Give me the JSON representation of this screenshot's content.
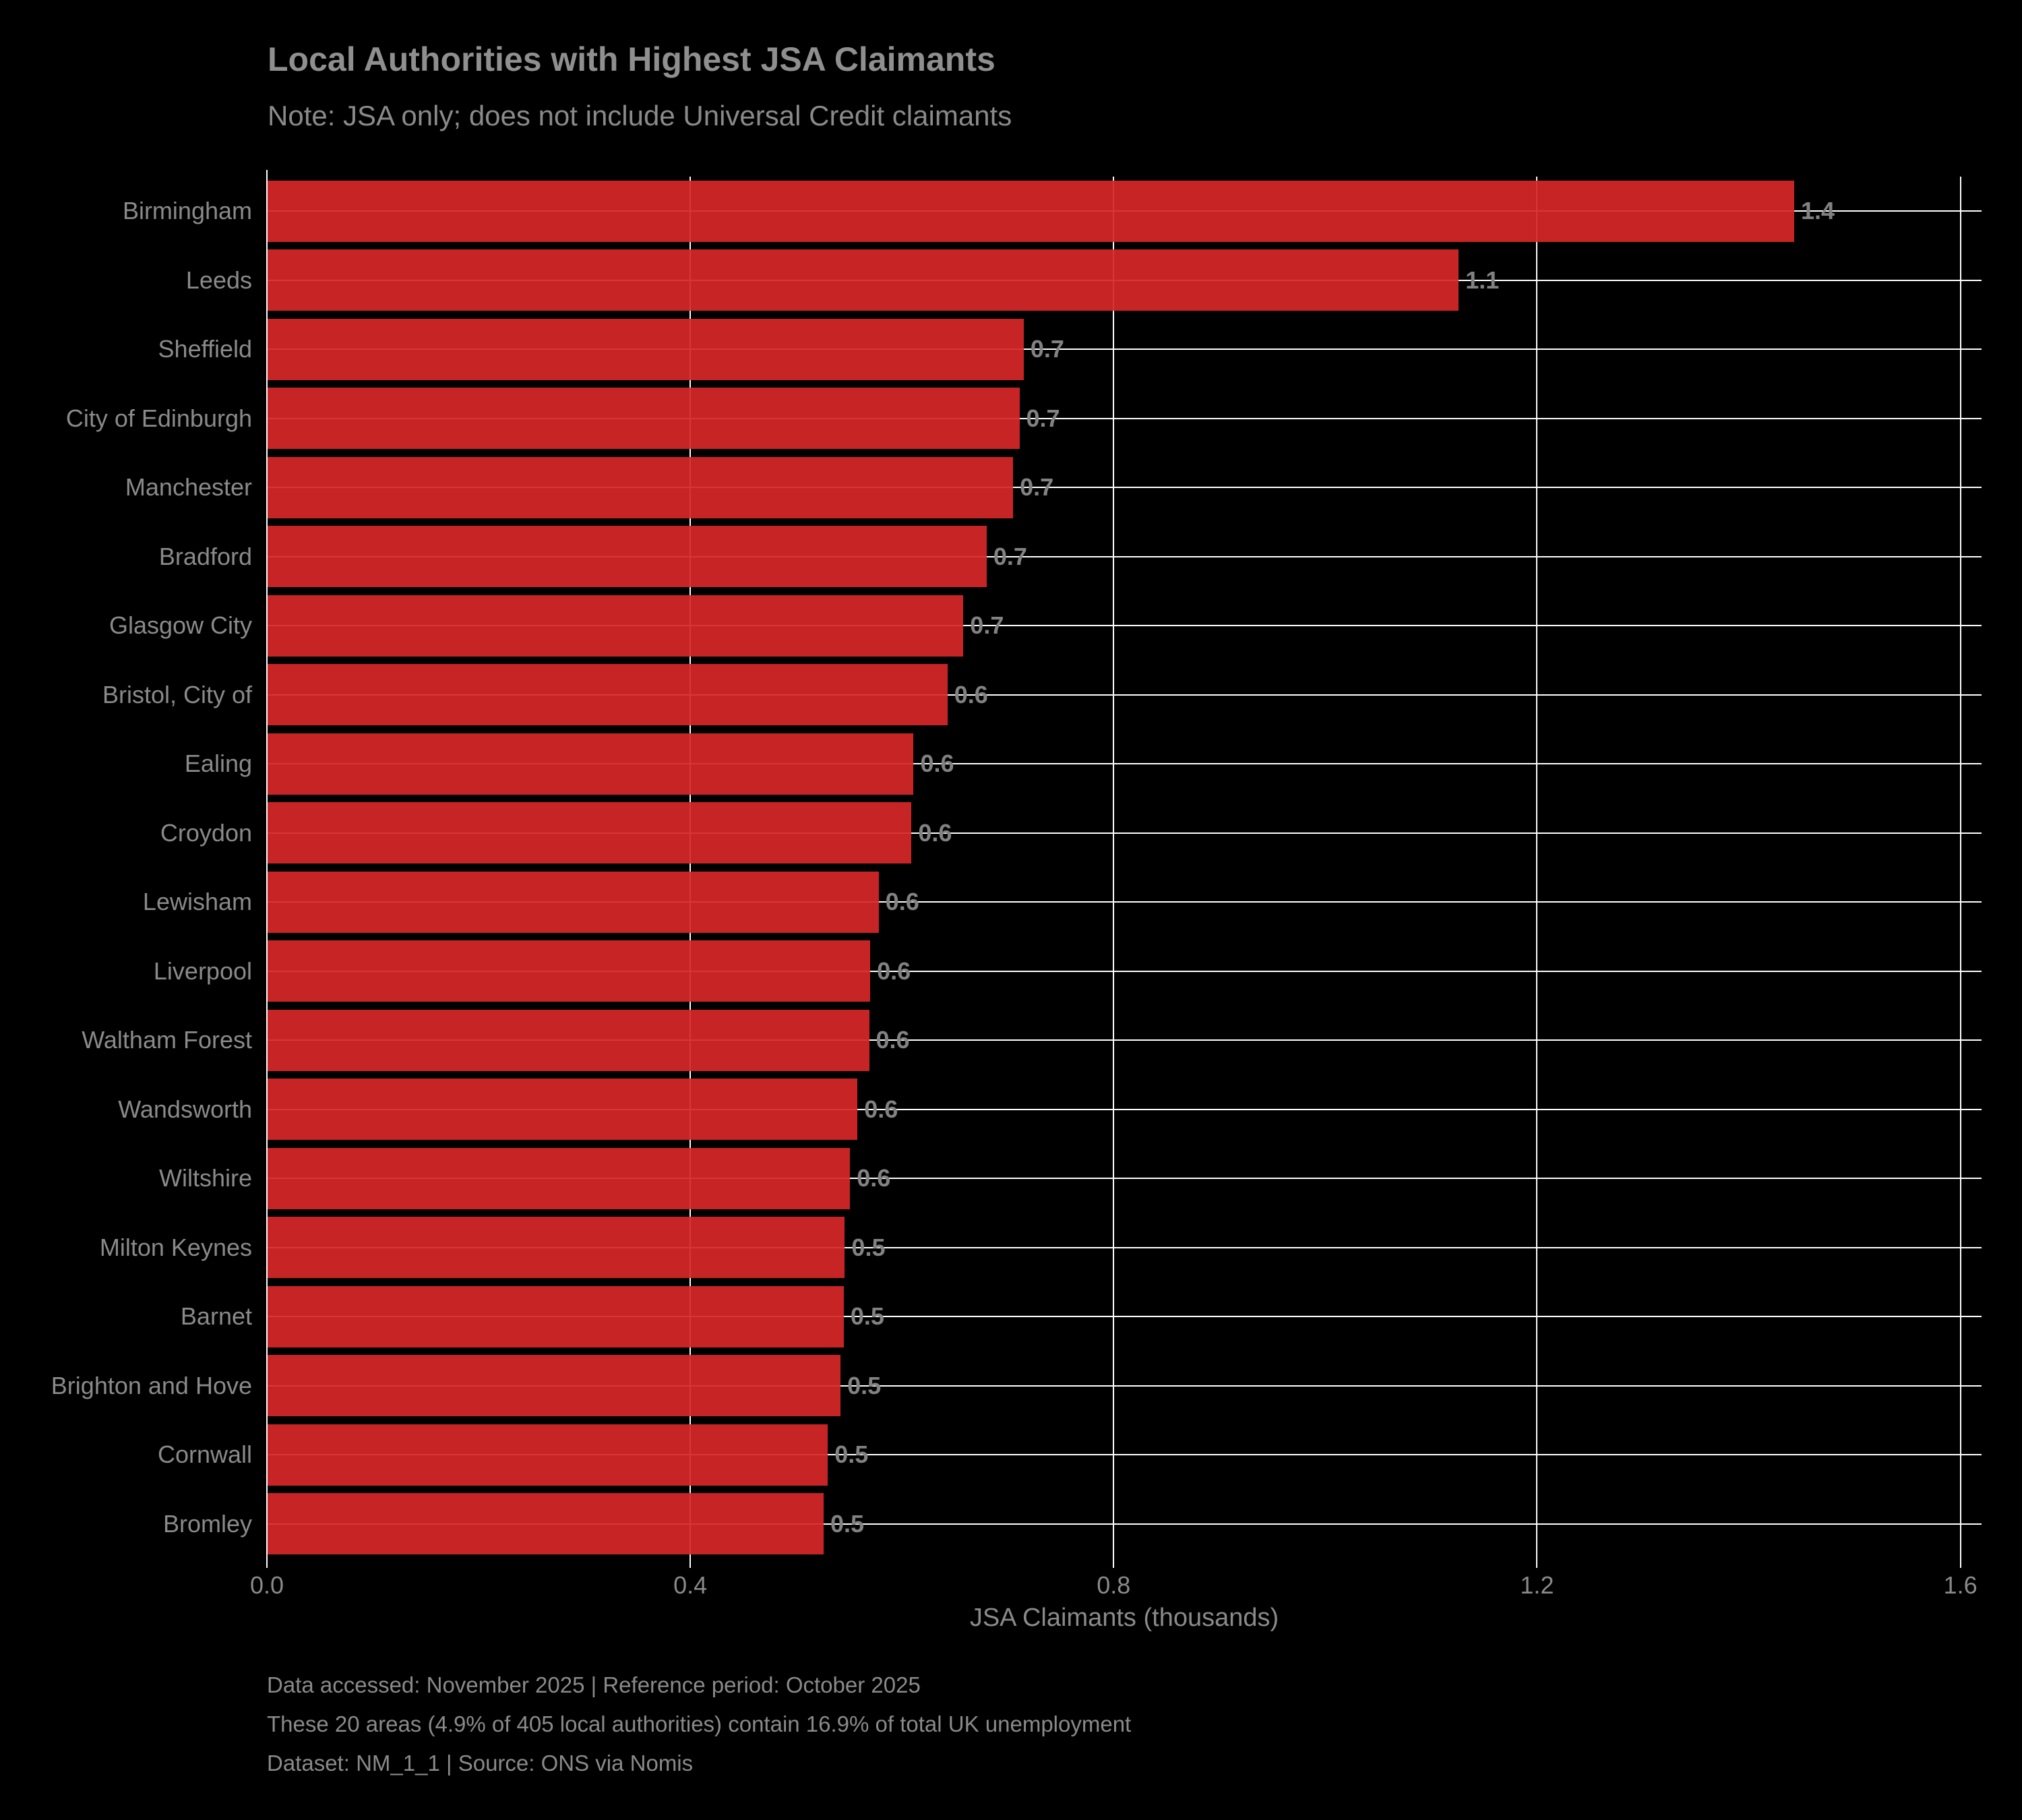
{
  "title": "Local Authorities with Highest JSA Claimants",
  "subtitle": "Note: JSA only; does not include Universal Credit claimants",
  "chart_data": {
    "type": "bar",
    "orientation": "horizontal",
    "title": "Local Authorities with Highest JSA Claimants",
    "subtitle": "Note: JSA only; does not include Universal Credit claimants",
    "categories": [
      "Birmingham",
      "Leeds",
      "Sheffield",
      "City of Edinburgh",
      "Manchester",
      "Bradford",
      "Glasgow City",
      "Bristol, City of",
      "Ealing",
      "Croydon",
      "Lewisham",
      "Liverpool",
      "Waltham Forest",
      "Wandsworth",
      "Wiltshire",
      "Milton Keynes",
      "Barnet",
      "Brighton and Hove",
      "Cornwall",
      "Bromley"
    ],
    "values": [
      1.443,
      1.126,
      0.715,
      0.711,
      0.705,
      0.68,
      0.658,
      0.643,
      0.611,
      0.609,
      0.578,
      0.57,
      0.569,
      0.558,
      0.551,
      0.546,
      0.545,
      0.542,
      0.53,
      0.526
    ],
    "bar_labels": [
      "1.4",
      "1.1",
      "0.7",
      "0.7",
      "0.7",
      "0.7",
      "0.7",
      "0.6",
      "0.6",
      "0.6",
      "0.6",
      "0.6",
      "0.6",
      "0.6",
      "0.6",
      "0.5",
      "0.5",
      "0.5",
      "0.5",
      "0.5"
    ],
    "xlabel": "JSA Claimants (thousands)",
    "xticks": [
      0.0,
      0.4,
      0.8,
      1.2,
      1.6
    ],
    "xtick_labels": [
      "0.0",
      "0.4",
      "0.8",
      "1.2",
      "1.6"
    ],
    "xlim": [
      0,
      1.62
    ],
    "grid": true,
    "legend": "none",
    "bar_color": "#d62728",
    "grid_color": "#ffffff",
    "background_color": "#000000",
    "text_color": "#8a8a8a"
  },
  "footer": {
    "line1": "Data accessed: November 2025 | Reference period: October 2025",
    "line2": "These 20 areas (4.9% of 405 local authorities) contain 16.9% of total UK unemployment",
    "line3": "Dataset: NM_1_1 | Source: ONS via Nomis"
  }
}
